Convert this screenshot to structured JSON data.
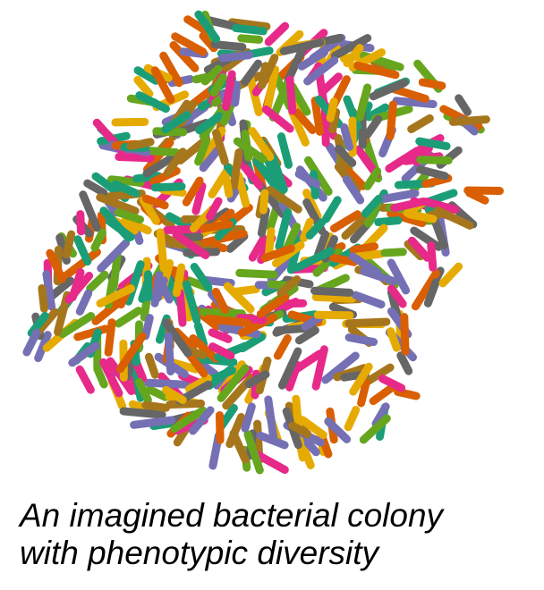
{
  "caption": {
    "line1": "An imagined bacterial colony",
    "line2": "with phenotypic diversity"
  },
  "colony": {
    "palette": [
      "#1b9e77",
      "#e7298a",
      "#66a61e",
      "#7570b3",
      "#d95f02",
      "#e6ab02",
      "#666666",
      "#a6761d"
    ],
    "cell_icon": "rod-shaped-bacterium"
  }
}
